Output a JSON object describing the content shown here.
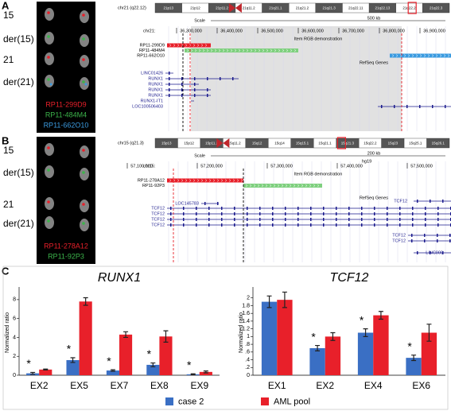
{
  "panels": [
    {
      "label": "A",
      "fish": {
        "chromosomes": [
          "15",
          "der(15)",
          "21",
          "der(21)"
        ],
        "probes": [
          {
            "name": "RP11-299D9",
            "color": "#e8202a"
          },
          {
            "name": "RP11-484M4",
            "color": "#3cb44b"
          },
          {
            "name": "RP11-662O10",
            "color": "#3b9be0"
          }
        ]
      },
      "browser": {
        "band": "chr21 (q22.12)",
        "ideogram": [
          "21p13",
          "21p12",
          "21p11.2",
          "21q11.2",
          "21q21.1",
          "21q21.2",
          "21q21.3",
          "21q22.11",
          "21q22.13",
          "21q22.2",
          "21q22.3"
        ],
        "scale_label": "Scale",
        "scale": "500 kb",
        "chrom": "chr21:",
        "coordinates": [
          "36,300,000",
          "36,400,000",
          "36,500,000",
          "36,600,000",
          "36,700,000",
          "36,800,000",
          "36,900,000"
        ],
        "track_title": "Item RGB demonstration",
        "clones": [
          "RP11-299D9",
          "RP11-484M4",
          "RP11-662O10"
        ],
        "genes_title": "RefSeq Genes",
        "genes": [
          "LINC01426",
          "RUNX1",
          "RUNX1",
          "RUNX1",
          "RUNX1",
          "RUNX1-IT1",
          "LOC100506403"
        ]
      }
    },
    {
      "label": "B",
      "fish": {
        "chromosomes": [
          "15",
          "der(15)",
          "21",
          "der(21)"
        ],
        "probes": [
          {
            "name": "RP11-278A12",
            "color": "#e8202a"
          },
          {
            "name": "RP11-92P3",
            "color": "#3cb44b"
          }
        ]
      },
      "browser": {
        "band": "chr15 (q21.3)",
        "ideogram": [
          "15p13",
          "15p12",
          "15p11.2",
          "15q11.2",
          "15q12",
          "15q14",
          "15q15.1",
          "15q21.1",
          "15q21.3",
          "15q22.2",
          "15q23",
          "15q25.1",
          "15q26.1"
        ],
        "scale_label": "Scale",
        "scale": "200 kb",
        "assembly": "hg19",
        "chrom": "chr15:",
        "coordinates": [
          "57,100,000",
          "57,200,000",
          "57,300,000",
          "57,400,000",
          "57,500,000"
        ],
        "track_title": "Item RGB demonstration",
        "clones": [
          "RP11-278A12",
          "RP11-92P3"
        ],
        "genes_title": "RefSeq Genes",
        "genes": [
          "LOC145783",
          "TCF12",
          "TCF12",
          "TCF12",
          "TCF12",
          "TCF12",
          "TCF12",
          "TCF12",
          "LINC009"
        ]
      }
    }
  ],
  "panel_c_label": "C",
  "chart_data": [
    {
      "type": "bar",
      "title": "RUNX1",
      "y_label": "Normalized ratio",
      "categories": [
        "EX2",
        "EX5",
        "EX7",
        "EX8",
        "EX9"
      ],
      "series": [
        {
          "name": "case 2",
          "color": "#3a6fc4",
          "values": [
            0.2,
            1.6,
            0.5,
            1.1,
            0.1
          ],
          "errors": [
            0.1,
            0.25,
            0.08,
            0.2,
            0.05
          ]
        },
        {
          "name": "AML pool",
          "color": "#e8202a",
          "values": [
            0.6,
            7.8,
            4.3,
            4.1,
            0.35
          ],
          "errors": [
            0.05,
            0.4,
            0.3,
            0.6,
            0.1
          ]
        }
      ],
      "significance": [
        "*",
        "*",
        "*",
        "*",
        "*"
      ],
      "ylim": [
        0,
        9
      ],
      "yticks": [
        0,
        2,
        4,
        6,
        8
      ]
    },
    {
      "type": "bar",
      "title": "TCF12",
      "y_label": "Normalized ratio",
      "categories": [
        "EX1",
        "EX2",
        "EX4",
        "EX6"
      ],
      "series": [
        {
          "color": "#3a6fc4",
          "values": [
            1.9,
            0.7,
            1.1,
            0.45
          ],
          "errors": [
            0.15,
            0.07,
            0.1,
            0.07
          ]
        },
        {
          "color": "#e8202a",
          "values": [
            1.95,
            1.0,
            1.55,
            1.1
          ],
          "errors": [
            0.2,
            0.1,
            0.1,
            0.22
          ]
        }
      ],
      "significance": [
        null,
        "*",
        "*",
        "*"
      ],
      "ylim": [
        0,
        2.2
      ],
      "yticks": [
        0,
        {
          "value": 0.2,
          "label": ".2"
        },
        {
          "value": 0.4,
          "label": ".4"
        },
        {
          "value": 0.6,
          "label": ".6"
        },
        {
          "value": 0.8,
          "label": ".8"
        },
        1,
        1.2,
        1.4,
        1.6,
        1.8,
        2
      ]
    }
  ]
}
